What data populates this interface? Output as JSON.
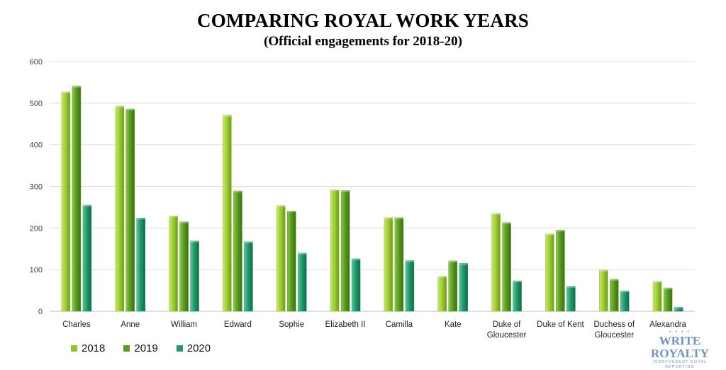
{
  "chart_data": {
    "type": "bar",
    "title": "COMPARING ROYAL WORK YEARS",
    "subtitle": "(Official engagements for 2018-20)",
    "xlabel": "",
    "ylabel": "",
    "ylim": [
      0,
      600
    ],
    "yticks": [
      0,
      100,
      200,
      300,
      400,
      500,
      600
    ],
    "grid": true,
    "legend_position": "bottom-left",
    "categories": [
      [
        "Charles"
      ],
      [
        "Anne"
      ],
      [
        "William"
      ],
      [
        "Edward"
      ],
      [
        "Sophie"
      ],
      [
        "Elizabeth II"
      ],
      [
        "Camilla"
      ],
      [
        "Kate"
      ],
      [
        "Duke of",
        "Gloucester"
      ],
      [
        "Duke of Kent"
      ],
      [
        "Duchess of",
        "Gloucester"
      ],
      [
        "Alexandra"
      ]
    ],
    "series": [
      {
        "name": "2018",
        "color": "#92c52c",
        "values": [
          527,
          493,
          229,
          471,
          254,
          292,
          225,
          84,
          235,
          186,
          99,
          72
        ]
      },
      {
        "name": "2019",
        "color": "#5a9e1f",
        "values": [
          541,
          486,
          215,
          289,
          241,
          290,
          225,
          121,
          213,
          195,
          77,
          56
        ]
      },
      {
        "name": "2020",
        "color": "#1f9b6a",
        "values": [
          255,
          224,
          169,
          167,
          140,
          126,
          122,
          115,
          73,
          60,
          49,
          10
        ]
      }
    ]
  },
  "brand": {
    "dots": "• • • •",
    "name": "WRITE ROYALTY",
    "tagline": "INDEPENDENT ROYAL REPORTING"
  }
}
